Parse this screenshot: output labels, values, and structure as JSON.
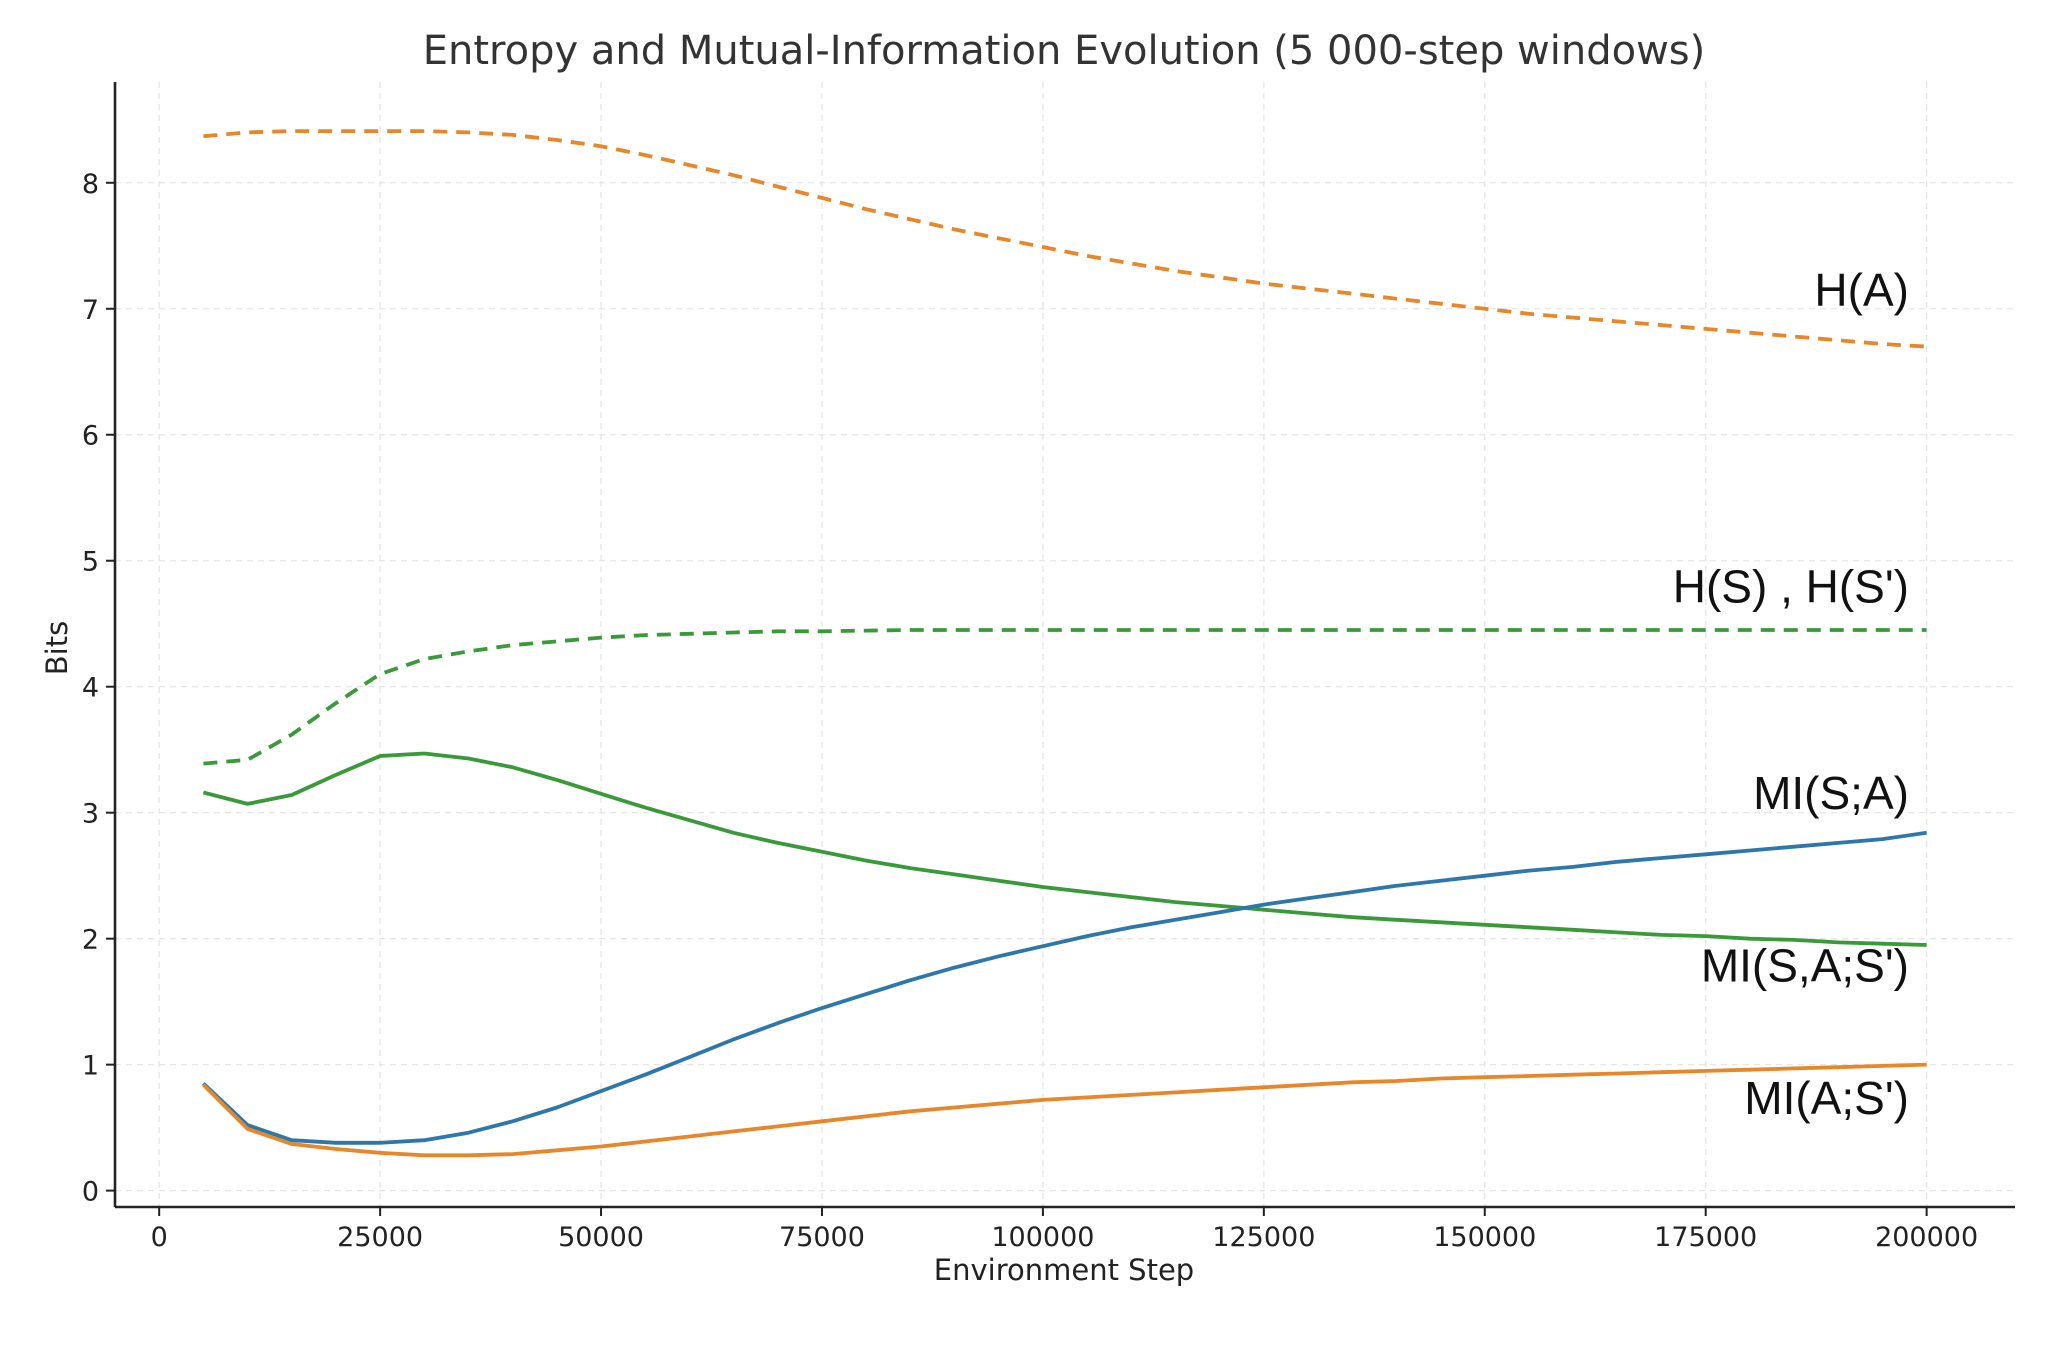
{
  "chart_data": {
    "type": "line",
    "title": "Entropy and Mutual-Information Evolution (5 000-step windows)",
    "xlabel": "Environment Step",
    "ylabel": "Bits",
    "xlim": [
      -5000,
      210000
    ],
    "ylim": [
      -0.13,
      8.8
    ],
    "xticks": [
      0,
      25000,
      50000,
      75000,
      100000,
      125000,
      150000,
      175000,
      200000
    ],
    "yticks": [
      0,
      1,
      2,
      3,
      4,
      5,
      6,
      7,
      8
    ],
    "grid": true,
    "legend": "none",
    "x": [
      5000,
      10000,
      15000,
      20000,
      25000,
      30000,
      35000,
      40000,
      45000,
      50000,
      55000,
      60000,
      65000,
      70000,
      75000,
      80000,
      85000,
      90000,
      95000,
      100000,
      105000,
      110000,
      115000,
      120000,
      125000,
      130000,
      135000,
      140000,
      145000,
      150000,
      155000,
      160000,
      165000,
      170000,
      175000,
      180000,
      185000,
      190000,
      195000,
      200000
    ],
    "series": [
      {
        "name": "H(A)",
        "color": "#e8862a",
        "dashed": true,
        "values": [
          8.37,
          8.4,
          8.41,
          8.41,
          8.41,
          8.41,
          8.4,
          8.38,
          8.34,
          8.29,
          8.22,
          8.14,
          8.06,
          7.97,
          7.88,
          7.79,
          7.71,
          7.63,
          7.56,
          7.49,
          7.42,
          7.36,
          7.3,
          7.25,
          7.2,
          7.16,
          7.12,
          7.08,
          7.04,
          7.0,
          6.96,
          6.93,
          6.9,
          6.87,
          6.84,
          6.81,
          6.78,
          6.75,
          6.72,
          6.7
        ]
      },
      {
        "name": "H(S) , H(S')",
        "color": "#3a9a3a",
        "dashed": true,
        "values": [
          3.39,
          3.42,
          3.62,
          3.87,
          4.1,
          4.22,
          4.28,
          4.33,
          4.36,
          4.39,
          4.41,
          4.42,
          4.43,
          4.44,
          4.44,
          4.445,
          4.45,
          4.45,
          4.45,
          4.45,
          4.45,
          4.45,
          4.45,
          4.45,
          4.45,
          4.45,
          4.45,
          4.45,
          4.45,
          4.45,
          4.45,
          4.45,
          4.45,
          4.45,
          4.45,
          4.45,
          4.45,
          4.45,
          4.45,
          4.45
        ]
      },
      {
        "name": "MI(S,A;S')",
        "color": "#3a9a3a",
        "dashed": false,
        "values": [
          3.16,
          3.07,
          3.14,
          3.3,
          3.45,
          3.47,
          3.43,
          3.36,
          3.26,
          3.15,
          3.04,
          2.94,
          2.84,
          2.76,
          2.69,
          2.62,
          2.56,
          2.51,
          2.46,
          2.41,
          2.37,
          2.33,
          2.29,
          2.26,
          2.23,
          2.2,
          2.17,
          2.15,
          2.13,
          2.11,
          2.09,
          2.07,
          2.05,
          2.03,
          2.02,
          2.0,
          1.99,
          1.97,
          1.96,
          1.95
        ]
      },
      {
        "name": "MI(S;A)",
        "color": "#2e77aa",
        "dashed": false,
        "values": [
          0.85,
          0.52,
          0.4,
          0.38,
          0.38,
          0.4,
          0.46,
          0.55,
          0.66,
          0.79,
          0.92,
          1.06,
          1.2,
          1.33,
          1.45,
          1.56,
          1.67,
          1.77,
          1.86,
          1.94,
          2.02,
          2.09,
          2.15,
          2.21,
          2.27,
          2.32,
          2.37,
          2.42,
          2.46,
          2.5,
          2.54,
          2.57,
          2.61,
          2.64,
          2.67,
          2.7,
          2.73,
          2.76,
          2.79,
          2.84
        ]
      },
      {
        "name": "MI(A;S')",
        "color": "#e8862a",
        "dashed": false,
        "values": [
          0.84,
          0.49,
          0.37,
          0.33,
          0.3,
          0.28,
          0.28,
          0.29,
          0.32,
          0.35,
          0.39,
          0.43,
          0.47,
          0.51,
          0.55,
          0.59,
          0.63,
          0.66,
          0.69,
          0.72,
          0.74,
          0.76,
          0.78,
          0.8,
          0.82,
          0.84,
          0.86,
          0.87,
          0.89,
          0.9,
          0.91,
          0.92,
          0.93,
          0.94,
          0.95,
          0.96,
          0.97,
          0.98,
          0.99,
          1.0
        ]
      }
    ],
    "annotations": [
      {
        "text": "H(A)",
        "x": 198000,
        "y": 7.02
      },
      {
        "text": "H(S) , H(S')",
        "x": 198000,
        "y": 4.67
      },
      {
        "text": "MI(S;A)",
        "x": 198000,
        "y": 3.03
      },
      {
        "text": "MI(S,A;S')",
        "x": 198000,
        "y": 1.66
      },
      {
        "text": "MI(A;S')",
        "x": 198000,
        "y": 0.61
      }
    ]
  }
}
